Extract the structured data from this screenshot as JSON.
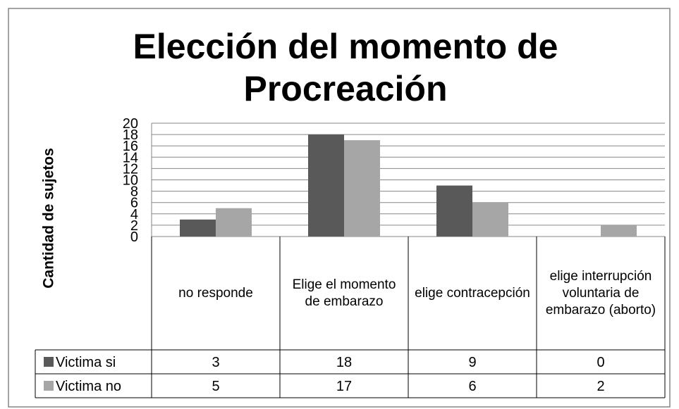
{
  "chart_data": {
    "type": "bar",
    "title": "Elección del momento de Procreación",
    "y_label": "Cantidad de sujetos",
    "categories": [
      "no responde",
      "Elige el momento de embarazo",
      "elige contracepción",
      "elige interrupción voluntaria de embarazo (aborto)"
    ],
    "series": [
      {
        "name": "Victima si",
        "color": "#595959",
        "values": [
          3,
          18,
          9,
          0
        ]
      },
      {
        "name": "Victima no",
        "color": "#a6a6a6",
        "values": [
          5,
          17,
          6,
          2
        ]
      }
    ],
    "ylim": [
      0,
      20
    ],
    "yticks": [
      0,
      2,
      4,
      6,
      8,
      10,
      12,
      14,
      16,
      18,
      20
    ],
    "grid": true,
    "data_table": true
  }
}
